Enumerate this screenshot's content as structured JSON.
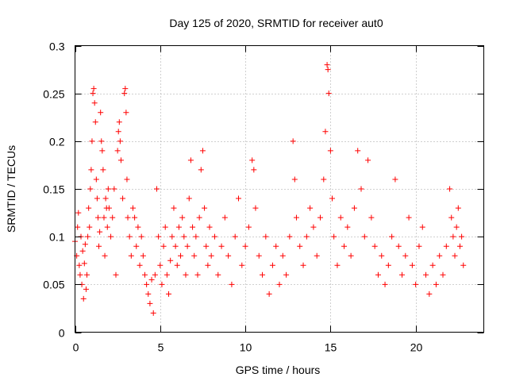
{
  "chart_data": {
    "type": "scatter",
    "title": "Day 125 of 2020, SRMTID for receiver aut0",
    "xlabel": "GPS time / hours",
    "ylabel": "SRMTID / TECUs",
    "xlim": [
      0,
      24
    ],
    "ylim": [
      0,
      0.3
    ],
    "x_ticks": [
      0,
      5,
      10,
      15,
      20
    ],
    "x_tick_labels": [
      "0",
      "5",
      "10",
      "15",
      "20"
    ],
    "y_ticks": [
      0,
      0.05,
      0.1,
      0.15,
      0.2,
      0.25,
      0.3
    ],
    "y_tick_labels": [
      "0",
      "0.05",
      "0.1",
      "0.15",
      "0.2",
      "0.25",
      "0.3"
    ],
    "grid": true,
    "marker": "plus",
    "series": [
      {
        "name": "SRMTID",
        "color": "#ff0000",
        "points": [
          [
            0.0,
            0.095
          ],
          [
            0.1,
            0.08
          ],
          [
            0.15,
            0.11
          ],
          [
            0.2,
            0.125
          ],
          [
            0.25,
            0.07
          ],
          [
            0.3,
            0.06
          ],
          [
            0.35,
            0.1
          ],
          [
            0.4,
            0.05
          ],
          [
            0.45,
            0.085
          ],
          [
            0.5,
            0.035
          ],
          [
            0.55,
            0.072
          ],
          [
            0.6,
            0.092
          ],
          [
            0.65,
            0.045
          ],
          [
            0.7,
            0.06
          ],
          [
            0.75,
            0.1
          ],
          [
            0.8,
            0.13
          ],
          [
            0.85,
            0.11
          ],
          [
            0.9,
            0.15
          ],
          [
            0.95,
            0.17
          ],
          [
            1.0,
            0.2
          ],
          [
            1.05,
            0.25
          ],
          [
            1.1,
            0.255
          ],
          [
            1.15,
            0.24
          ],
          [
            1.2,
            0.22
          ],
          [
            1.25,
            0.16
          ],
          [
            1.3,
            0.14
          ],
          [
            1.35,
            0.12
          ],
          [
            1.4,
            0.09
          ],
          [
            1.45,
            0.105
          ],
          [
            1.5,
            0.23
          ],
          [
            1.55,
            0.2
          ],
          [
            1.6,
            0.19
          ],
          [
            1.65,
            0.17
          ],
          [
            1.7,
            0.12
          ],
          [
            1.75,
            0.08
          ],
          [
            1.8,
            0.14
          ],
          [
            1.85,
            0.13
          ],
          [
            1.9,
            0.11
          ],
          [
            1.95,
            0.15
          ],
          [
            2.0,
            0.13
          ],
          [
            2.1,
            0.1
          ],
          [
            2.2,
            0.12
          ],
          [
            2.3,
            0.15
          ],
          [
            2.4,
            0.06
          ],
          [
            2.5,
            0.19
          ],
          [
            2.55,
            0.21
          ],
          [
            2.6,
            0.22
          ],
          [
            2.65,
            0.2
          ],
          [
            2.7,
            0.18
          ],
          [
            2.8,
            0.14
          ],
          [
            2.9,
            0.25
          ],
          [
            2.95,
            0.255
          ],
          [
            3.0,
            0.23
          ],
          [
            3.05,
            0.16
          ],
          [
            3.1,
            0.12
          ],
          [
            3.2,
            0.1
          ],
          [
            3.3,
            0.08
          ],
          [
            3.4,
            0.13
          ],
          [
            3.5,
            0.12
          ],
          [
            3.6,
            0.09
          ],
          [
            3.7,
            0.11
          ],
          [
            3.8,
            0.07
          ],
          [
            3.9,
            0.1
          ],
          [
            4.0,
            0.08
          ],
          [
            4.1,
            0.06
          ],
          [
            4.2,
            0.05
          ],
          [
            4.3,
            0.04
          ],
          [
            4.4,
            0.03
          ],
          [
            4.5,
            0.055
          ],
          [
            4.6,
            0.02
          ],
          [
            4.7,
            0.06
          ],
          [
            4.8,
            0.15
          ],
          [
            4.9,
            0.1
          ],
          [
            5.0,
            0.07
          ],
          [
            5.1,
            0.05
          ],
          [
            5.2,
            0.09
          ],
          [
            5.3,
            0.11
          ],
          [
            5.4,
            0.06
          ],
          [
            5.5,
            0.04
          ],
          [
            5.6,
            0.075
          ],
          [
            5.7,
            0.1
          ],
          [
            5.8,
            0.13
          ],
          [
            5.9,
            0.09
          ],
          [
            6.0,
            0.07
          ],
          [
            6.1,
            0.11
          ],
          [
            6.2,
            0.08
          ],
          [
            6.3,
            0.12
          ],
          [
            6.4,
            0.1
          ],
          [
            6.5,
            0.06
          ],
          [
            6.6,
            0.09
          ],
          [
            6.7,
            0.14
          ],
          [
            6.8,
            0.18
          ],
          [
            6.9,
            0.11
          ],
          [
            7.0,
            0.08
          ],
          [
            7.1,
            0.1
          ],
          [
            7.2,
            0.06
          ],
          [
            7.3,
            0.12
          ],
          [
            7.4,
            0.17
          ],
          [
            7.5,
            0.19
          ],
          [
            7.6,
            0.13
          ],
          [
            7.7,
            0.09
          ],
          [
            7.8,
            0.07
          ],
          [
            7.9,
            0.11
          ],
          [
            8.0,
            0.08
          ],
          [
            8.2,
            0.1
          ],
          [
            8.4,
            0.06
          ],
          [
            8.6,
            0.09
          ],
          [
            8.8,
            0.12
          ],
          [
            9.0,
            0.08
          ],
          [
            9.2,
            0.05
          ],
          [
            9.4,
            0.1
          ],
          [
            9.6,
            0.14
          ],
          [
            9.8,
            0.07
          ],
          [
            10.0,
            0.09
          ],
          [
            10.2,
            0.11
          ],
          [
            10.4,
            0.18
          ],
          [
            10.5,
            0.17
          ],
          [
            10.6,
            0.13
          ],
          [
            10.8,
            0.08
          ],
          [
            11.0,
            0.06
          ],
          [
            11.2,
            0.1
          ],
          [
            11.4,
            0.04
          ],
          [
            11.6,
            0.07
          ],
          [
            11.8,
            0.09
          ],
          [
            12.0,
            0.05
          ],
          [
            12.2,
            0.08
          ],
          [
            12.4,
            0.06
          ],
          [
            12.6,
            0.1
          ],
          [
            12.8,
            0.2
          ],
          [
            12.9,
            0.16
          ],
          [
            13.0,
            0.12
          ],
          [
            13.2,
            0.09
          ],
          [
            13.4,
            0.07
          ],
          [
            13.6,
            0.1
          ],
          [
            13.8,
            0.13
          ],
          [
            14.0,
            0.11
          ],
          [
            14.2,
            0.08
          ],
          [
            14.4,
            0.12
          ],
          [
            14.6,
            0.16
          ],
          [
            14.7,
            0.21
          ],
          [
            14.8,
            0.28
          ],
          [
            14.85,
            0.275
          ],
          [
            14.9,
            0.25
          ],
          [
            15.0,
            0.19
          ],
          [
            15.1,
            0.14
          ],
          [
            15.2,
            0.1
          ],
          [
            15.4,
            0.07
          ],
          [
            15.6,
            0.12
          ],
          [
            15.8,
            0.09
          ],
          [
            16.0,
            0.11
          ],
          [
            16.2,
            0.08
          ],
          [
            16.4,
            0.13
          ],
          [
            16.6,
            0.19
          ],
          [
            16.8,
            0.15
          ],
          [
            17.0,
            0.1
          ],
          [
            17.2,
            0.18
          ],
          [
            17.4,
            0.12
          ],
          [
            17.6,
            0.09
          ],
          [
            17.8,
            0.06
          ],
          [
            18.0,
            0.08
          ],
          [
            18.2,
            0.05
          ],
          [
            18.4,
            0.07
          ],
          [
            18.6,
            0.1
          ],
          [
            18.8,
            0.16
          ],
          [
            19.0,
            0.09
          ],
          [
            19.2,
            0.06
          ],
          [
            19.4,
            0.08
          ],
          [
            19.6,
            0.12
          ],
          [
            19.8,
            0.07
          ],
          [
            20.0,
            0.05
          ],
          [
            20.2,
            0.09
          ],
          [
            20.4,
            0.11
          ],
          [
            20.6,
            0.06
          ],
          [
            20.8,
            0.04
          ],
          [
            21.0,
            0.07
          ],
          [
            21.2,
            0.05
          ],
          [
            21.4,
            0.08
          ],
          [
            21.6,
            0.06
          ],
          [
            21.8,
            0.09
          ],
          [
            22.0,
            0.15
          ],
          [
            22.1,
            0.12
          ],
          [
            22.2,
            0.1
          ],
          [
            22.3,
            0.08
          ],
          [
            22.4,
            0.11
          ],
          [
            22.5,
            0.13
          ],
          [
            22.6,
            0.09
          ],
          [
            22.7,
            0.1
          ],
          [
            22.8,
            0.07
          ]
        ]
      }
    ]
  }
}
